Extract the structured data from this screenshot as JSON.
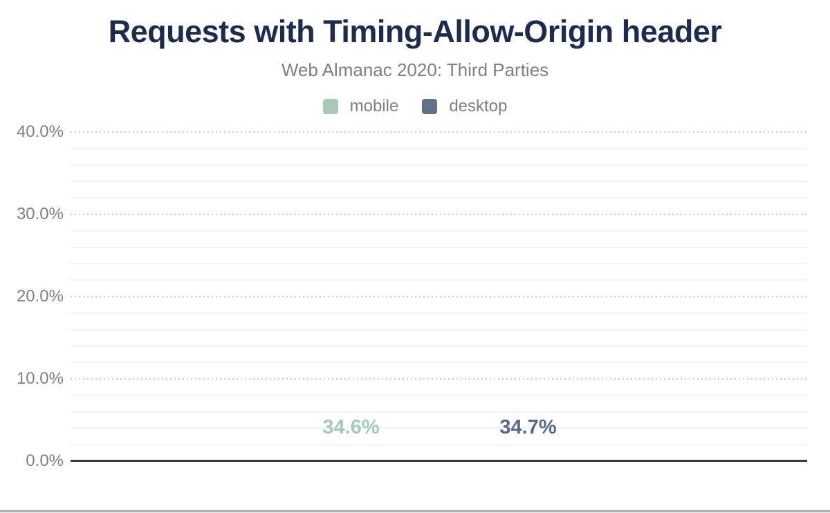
{
  "chart_data": {
    "type": "bar",
    "title": "Requests with Timing-Allow-Origin header",
    "subtitle": "Web Almanac 2020: Third Parties",
    "series": [
      {
        "name": "mobile",
        "value": 34.6,
        "label": "34.6%",
        "color": "#a8c9b8",
        "label_color": "#a8c9b8"
      },
      {
        "name": "desktop",
        "value": 34.7,
        "label": "34.7%",
        "color": "#60718a",
        "label_color": "#5a6a85"
      }
    ],
    "ylim": [
      0,
      40
    ],
    "y_major_step": 10,
    "y_minor_step": 2,
    "yticks": [
      {
        "value": 0,
        "label": "0.0%"
      },
      {
        "value": 10,
        "label": "10.0%"
      },
      {
        "value": 20,
        "label": "20.0%"
      },
      {
        "value": 30,
        "label": "30.0%"
      },
      {
        "value": 40,
        "label": "40.0%"
      }
    ],
    "legend_position": "top",
    "grid": true
  },
  "colors": {
    "title": "#1e2b4a",
    "muted_text": "#7c8187",
    "axis_line": "#35383c",
    "major_grid": "#cbcbcb",
    "minor_grid": "#f3f3f3",
    "bottom_rule": "#9c9c9c"
  }
}
